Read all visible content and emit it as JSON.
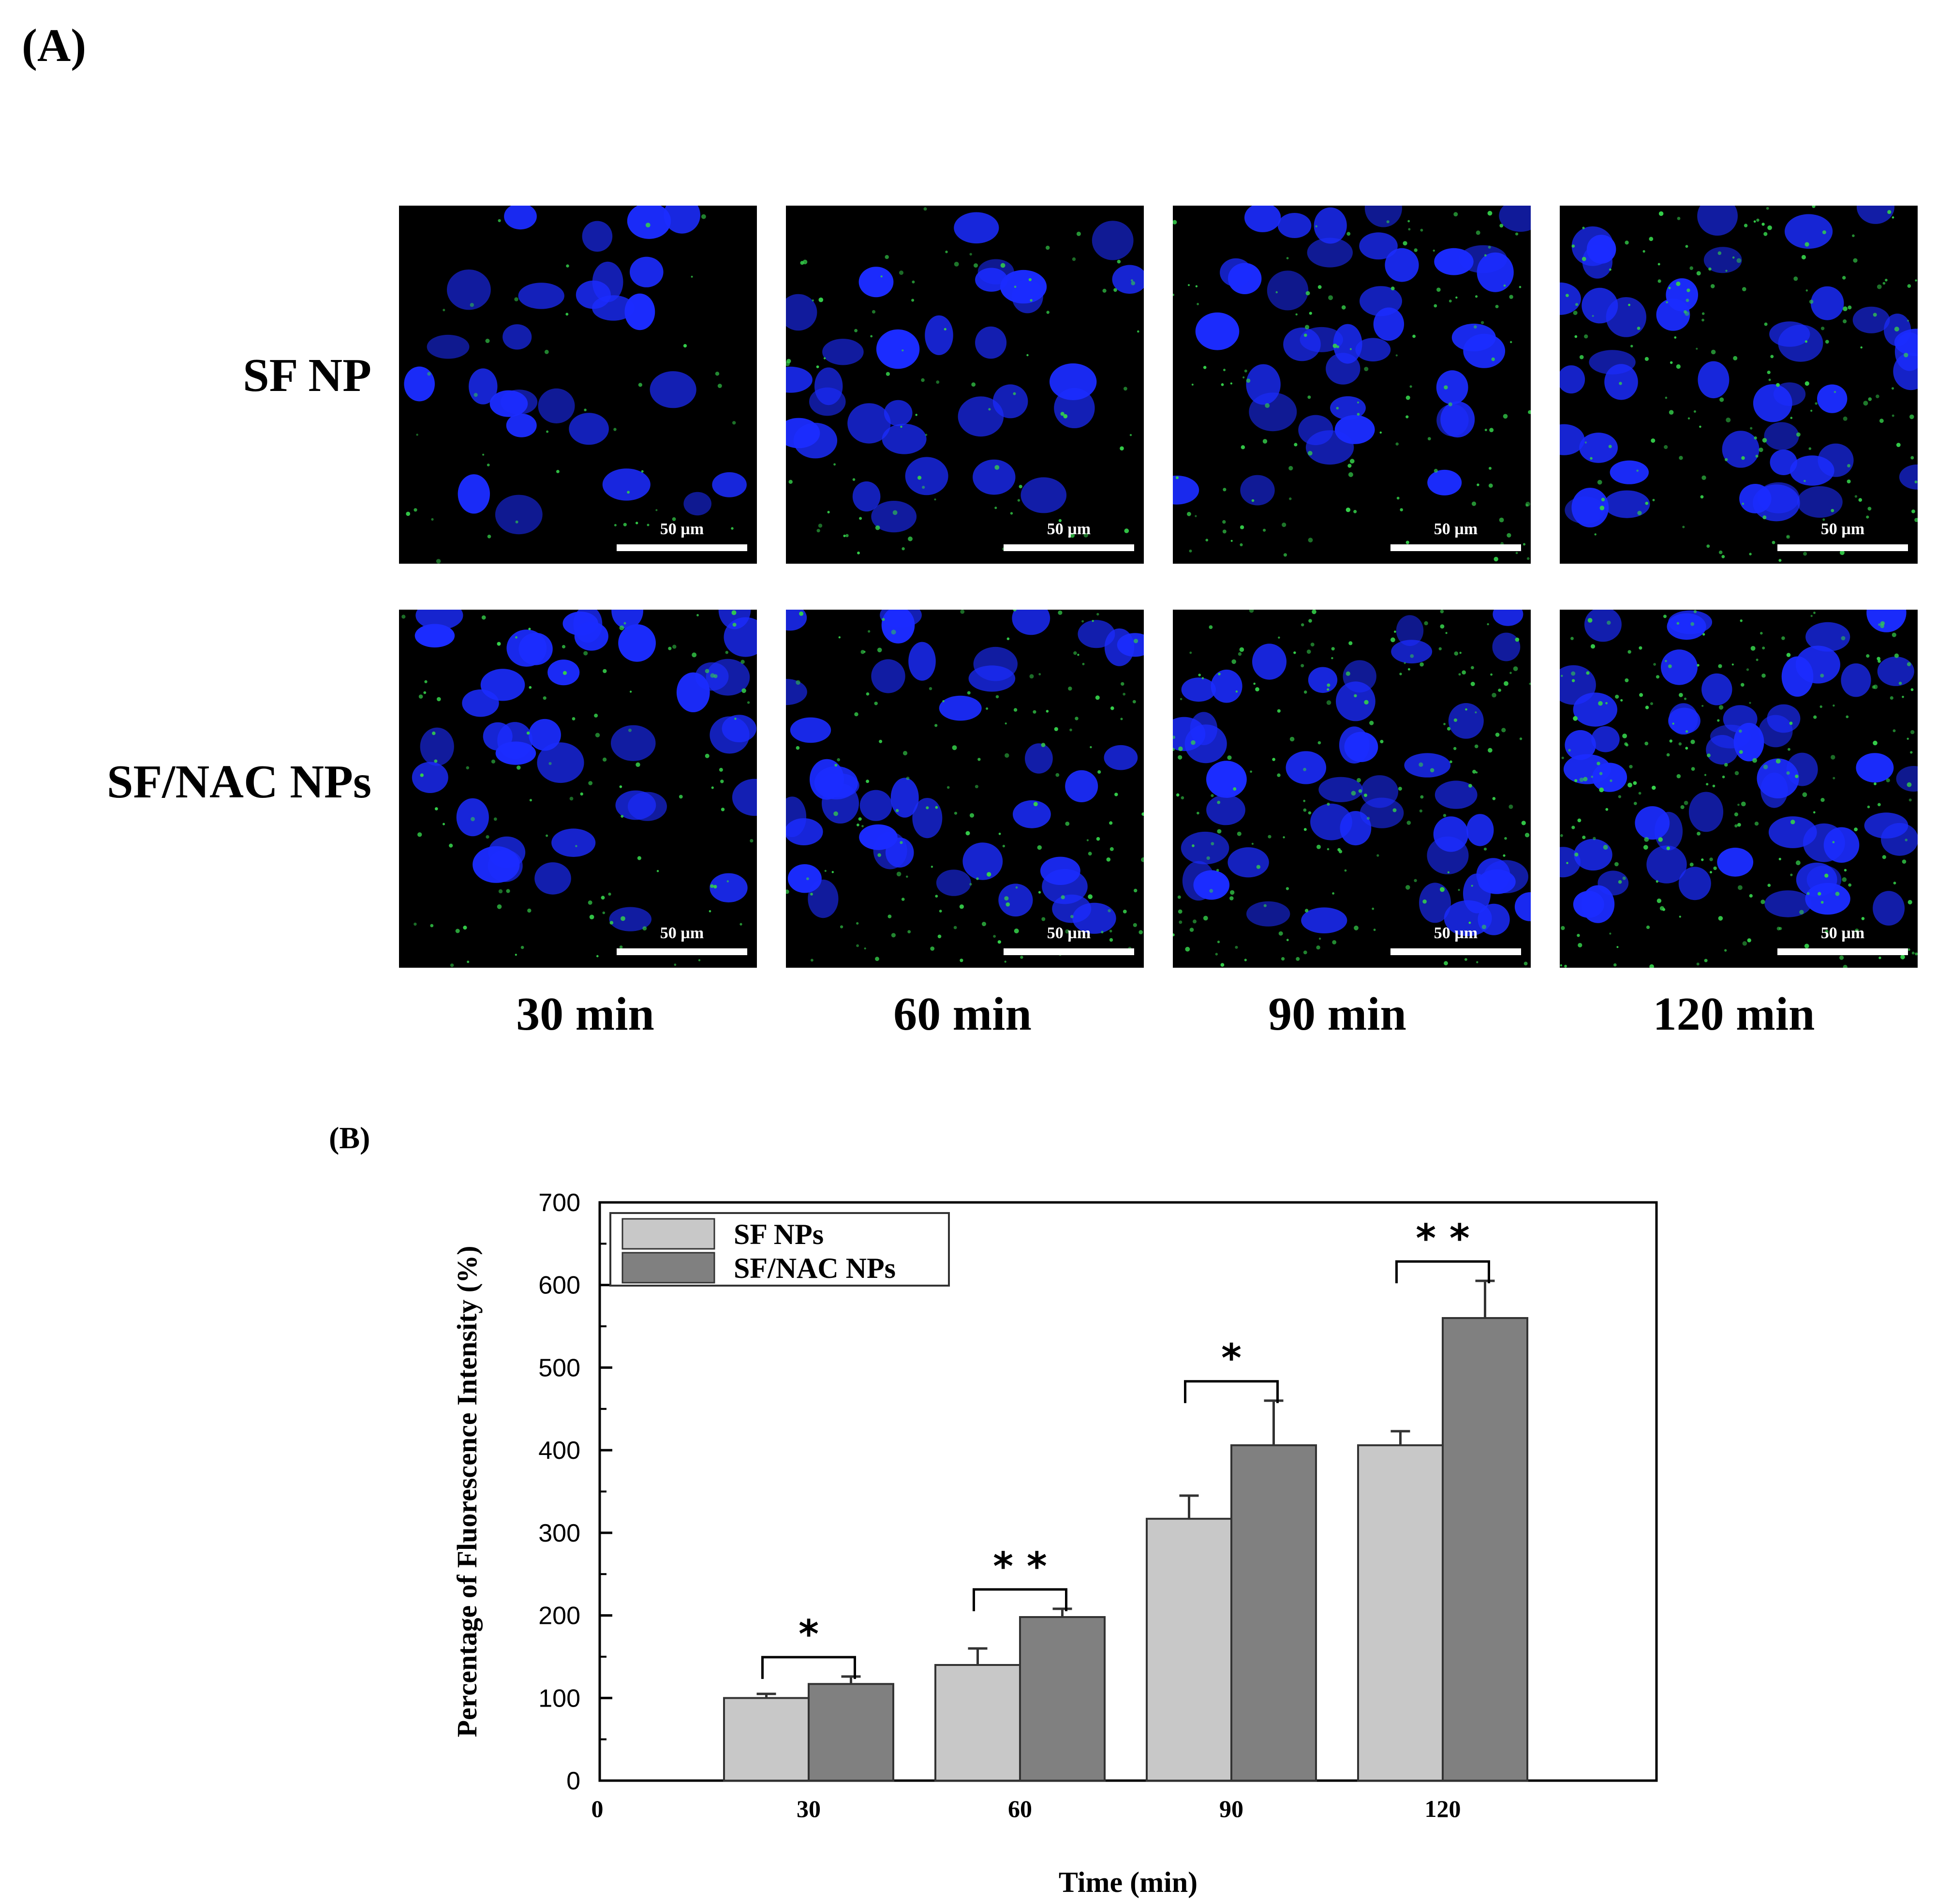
{
  "panel_a": {
    "label": "(A)",
    "rows": [
      "SF NP",
      "SF/NAC NPs"
    ],
    "columns": [
      "30 min",
      "60 min",
      "90 min",
      "120 min"
    ],
    "scale_bar": "50 µm",
    "colors": {
      "nucleus": "#1b2cff",
      "particle": "#35d04a",
      "background": "#000000"
    }
  },
  "panel_b": {
    "label": "(B)"
  },
  "chart_data": {
    "type": "bar",
    "categories": [
      "30",
      "60",
      "90",
      "120"
    ],
    "x_ticks": [
      "0",
      "30",
      "60",
      "90",
      "120"
    ],
    "xlabel": "Time (min)",
    "ylabel": "Percentage of Fluorescence Intensity (%)",
    "ylim": [
      0,
      700
    ],
    "y_ticks": [
      "0",
      "100",
      "200",
      "300",
      "400",
      "500",
      "600",
      "700"
    ],
    "legend_position": "top-left",
    "series": [
      {
        "name": "SF NPs",
        "color": "#c8c8c8",
        "values": [
          100,
          140,
          317,
          406
        ],
        "errors": [
          5,
          20,
          28,
          17
        ]
      },
      {
        "name": "SF/NAC NPs",
        "color": "#808080",
        "values": [
          117,
          198,
          406,
          560
        ],
        "errors": [
          9,
          10,
          54,
          45
        ]
      }
    ],
    "significance": [
      "*",
      "* *",
      "*",
      "* *"
    ]
  }
}
